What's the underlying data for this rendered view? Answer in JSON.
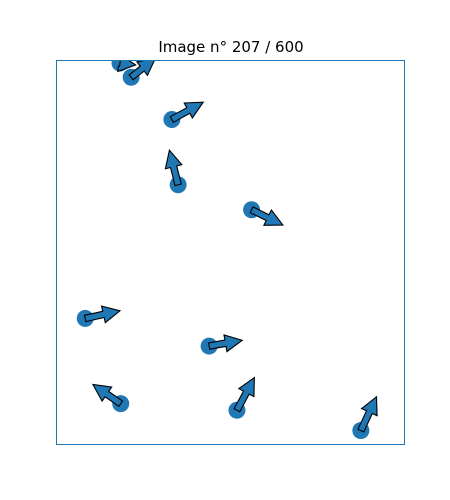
{
  "figure": {
    "title": "Image n° 207 / 600"
  },
  "chart_data": {
    "type": "scatter",
    "title": "Image n° 207 / 600",
    "xlabel": "",
    "ylabel": "",
    "xlim": [
      0,
      1
    ],
    "ylim": [
      0,
      1
    ],
    "axes_visible": false,
    "grid": false,
    "legend": "none",
    "marker_color": "#1f77b4",
    "frame_color": "#1f77b4",
    "arrow_outline_color": "#000000",
    "points": [
      {
        "x": 0.186,
        "y": 0.105,
        "dx": -0.08,
        "dy": 0.05
      },
      {
        "x": 0.084,
        "y": 0.327,
        "dx": 0.1,
        "dy": 0.02
      },
      {
        "x": 0.44,
        "y": 0.255,
        "dx": 0.095,
        "dy": 0.015
      },
      {
        "x": 0.52,
        "y": 0.088,
        "dx": 0.05,
        "dy": 0.085
      },
      {
        "x": 0.876,
        "y": 0.035,
        "dx": 0.045,
        "dy": 0.088
      },
      {
        "x": 0.562,
        "y": 0.61,
        "dx": 0.09,
        "dy": -0.04
      },
      {
        "x": 0.351,
        "y": 0.675,
        "dx": -0.025,
        "dy": 0.09
      },
      {
        "x": 0.333,
        "y": 0.845,
        "dx": 0.09,
        "dy": 0.045
      },
      {
        "x": 0.216,
        "y": 0.955,
        "dx": 0.07,
        "dy": 0.05
      },
      {
        "x": 0.184,
        "y": 0.992,
        "dx": 0.045,
        "dy": -0.005
      }
    ]
  }
}
